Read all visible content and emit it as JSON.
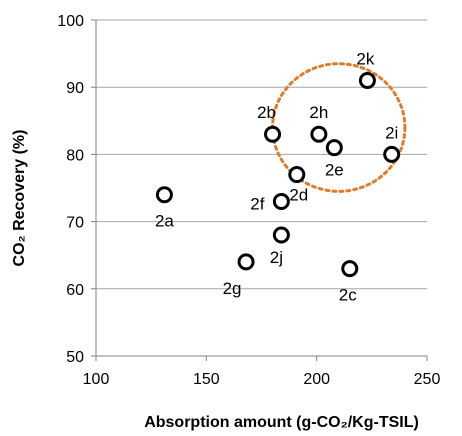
{
  "chart_data": {
    "type": "scatter",
    "xlabel": "Absorption amount (g-CO₂/Kg-TSIL)",
    "ylabel": "CO₂ Recovery (%)",
    "xlim": [
      100,
      250
    ],
    "ylim": [
      50,
      100
    ],
    "x_ticks": [
      100,
      150,
      200,
      250
    ],
    "y_ticks": [
      50,
      60,
      70,
      80,
      90,
      100
    ],
    "grid": "horizontal",
    "marker": "open-circle",
    "points": [
      {
        "label": "2a",
        "x": 131,
        "y": 74
      },
      {
        "label": "2b",
        "x": 180,
        "y": 83
      },
      {
        "label": "2c",
        "x": 215,
        "y": 63
      },
      {
        "label": "2d",
        "x": 191,
        "y": 77
      },
      {
        "label": "2e",
        "x": 208,
        "y": 81
      },
      {
        "label": "2f",
        "x": 184,
        "y": 73
      },
      {
        "label": "2g",
        "x": 168,
        "y": 64
      },
      {
        "label": "2h",
        "x": 201,
        "y": 83
      },
      {
        "label": "2i",
        "x": 234,
        "y": 80
      },
      {
        "label": "2j",
        "x": 184,
        "y": 68
      },
      {
        "label": "2k",
        "x": 223,
        "y": 91
      }
    ],
    "highlight_region": {
      "shape": "ellipse",
      "color": "#e07b2a",
      "style": "dotted",
      "x_center": 210,
      "y_center": 84,
      "x_radius": 30,
      "y_radius": 9.5
    }
  }
}
